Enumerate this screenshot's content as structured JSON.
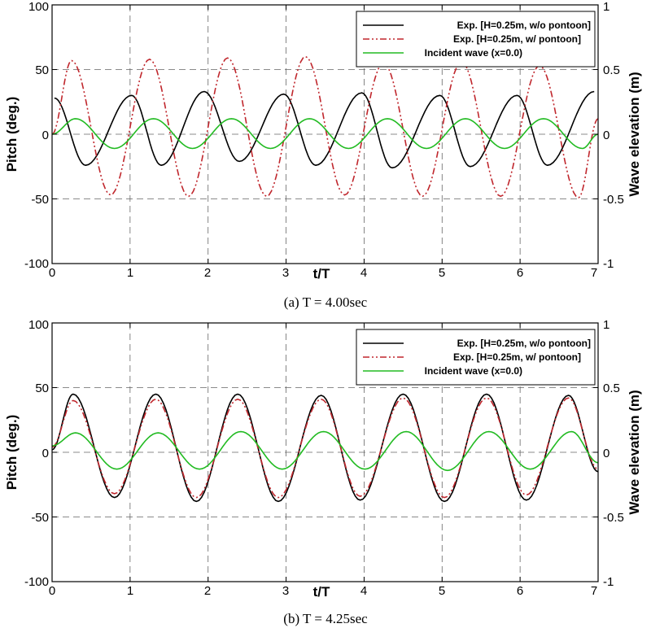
{
  "chart_data": [
    {
      "type": "line",
      "caption": "(a)  T  =  4.00sec",
      "xlabel": "t/T",
      "ylabel": "Pitch (deg.)",
      "y2label": "Wave elevation (m)",
      "xlim": [
        0,
        7
      ],
      "ylim": [
        -100,
        100
      ],
      "y2lim": [
        -1,
        1
      ],
      "xticks": [
        "0",
        "1",
        "2",
        "3",
        "4",
        "5",
        "6",
        "7"
      ],
      "yticks": [
        "-100",
        "-50",
        "0",
        "50",
        "100"
      ],
      "y2ticks": [
        "-1",
        "-0.5",
        "0",
        "0.5",
        "1"
      ],
      "grid": true,
      "legend_position": "top-right",
      "series": [
        {
          "name": "Exp. [H=0.25m, w/o pontoon]",
          "color": "#000000",
          "dash": "solid",
          "axis": "left",
          "peaks": [
            [
              0.03,
              28
            ],
            [
              1.02,
              30
            ],
            [
              1.95,
              33
            ],
            [
              2.97,
              31
            ],
            [
              3.97,
              32
            ],
            [
              4.97,
              30
            ],
            [
              5.96,
              30
            ],
            [
              6.95,
              33
            ]
          ],
          "troughs": [
            [
              0.43,
              -24
            ],
            [
              1.4,
              -24
            ],
            [
              2.4,
              -21
            ],
            [
              3.38,
              -24
            ],
            [
              4.36,
              -26
            ],
            [
              5.36,
              -25
            ],
            [
              6.35,
              -24
            ]
          ]
        },
        {
          "name": "Exp. [H=0.25m, w/ pontoon]",
          "color": "#c0272d",
          "dash": "dashdot",
          "axis": "left",
          "start": [
            0,
            0
          ],
          "peaks": [
            [
              0.25,
              57
            ],
            [
              1.25,
              58
            ],
            [
              2.25,
              59
            ],
            [
              3.25,
              60
            ],
            [
              4.25,
              55
            ],
            [
              5.25,
              56
            ],
            [
              6.25,
              53
            ]
          ],
          "troughs": [
            [
              0.75,
              -47
            ],
            [
              1.75,
              -48
            ],
            [
              2.75,
              -48
            ],
            [
              3.75,
              -47
            ],
            [
              4.75,
              -48
            ],
            [
              5.75,
              -48
            ],
            [
              6.75,
              -49
            ]
          ],
          "end": [
            7,
            12
          ]
        },
        {
          "name": "Incident wave (x=0.0)",
          "color": "#22bb22",
          "dash": "solid",
          "axis": "right",
          "start": [
            0,
            0.0
          ],
          "peaks": [
            [
              0.3,
              0.12
            ],
            [
              1.3,
              0.12
            ],
            [
              2.3,
              0.12
            ],
            [
              3.3,
              0.12
            ],
            [
              4.3,
              0.12
            ],
            [
              5.3,
              0.12
            ],
            [
              6.3,
              0.12
            ]
          ],
          "troughs": [
            [
              0.8,
              -0.11
            ],
            [
              1.8,
              -0.11
            ],
            [
              2.8,
              -0.11
            ],
            [
              3.8,
              -0.11
            ],
            [
              4.8,
              -0.11
            ],
            [
              5.8,
              -0.11
            ],
            [
              6.8,
              -0.11
            ]
          ],
          "end": [
            7,
            0.0
          ]
        }
      ]
    },
    {
      "type": "line",
      "caption": "(b)  T  =  4.25sec",
      "xlabel": "t/T",
      "ylabel": "Pitch (deg.)",
      "y2label": "Wave elevation (m)",
      "xlim": [
        0,
        7
      ],
      "ylim": [
        -100,
        100
      ],
      "y2lim": [
        -1,
        1
      ],
      "xticks": [
        "0",
        "1",
        "2",
        "3",
        "4",
        "5",
        "6",
        "7"
      ],
      "yticks": [
        "-100",
        "-50",
        "0",
        "50",
        "100"
      ],
      "y2ticks": [
        "-1",
        "-0.5",
        "0",
        "0.5",
        "1"
      ],
      "grid": true,
      "legend_position": "top-right",
      "series": [
        {
          "name": "Exp. [H=0.25m, w/o pontoon]",
          "color": "#000000",
          "dash": "solid",
          "axis": "left",
          "start": [
            0,
            2
          ],
          "peaks": [
            [
              0.27,
              45
            ],
            [
              1.33,
              45
            ],
            [
              2.38,
              45
            ],
            [
              3.45,
              44
            ],
            [
              4.5,
              45
            ],
            [
              5.57,
              45
            ],
            [
              6.62,
              44
            ]
          ],
          "troughs": [
            [
              0.8,
              -35
            ],
            [
              1.85,
              -38
            ],
            [
              2.9,
              -38
            ],
            [
              3.95,
              -37
            ],
            [
              5.03,
              -38
            ],
            [
              6.08,
              -37
            ]
          ],
          "end": [
            7,
            -15
          ]
        },
        {
          "name": "Exp. [H=0.25m, w/ pontoon]",
          "color": "#c0272d",
          "dash": "dashdot",
          "axis": "left",
          "start": [
            0,
            4
          ],
          "peaks": [
            [
              0.27,
              40
            ],
            [
              1.33,
              41
            ],
            [
              2.38,
              41
            ],
            [
              3.45,
              41
            ],
            [
              4.5,
              42
            ],
            [
              5.57,
              42
            ],
            [
              6.62,
              42
            ]
          ],
          "troughs": [
            [
              0.8,
              -32
            ],
            [
              1.85,
              -35
            ],
            [
              2.9,
              -35
            ],
            [
              3.95,
              -34
            ],
            [
              5.03,
              -35
            ],
            [
              6.08,
              -33
            ]
          ],
          "end": [
            7,
            -13
          ]
        },
        {
          "name": "Incident wave (x=0.0)",
          "color": "#22bb22",
          "dash": "solid",
          "axis": "right",
          "start": [
            0,
            0.05
          ],
          "peaks": [
            [
              0.3,
              0.15
            ],
            [
              1.36,
              0.15
            ],
            [
              2.42,
              0.16
            ],
            [
              3.48,
              0.16
            ],
            [
              4.54,
              0.16
            ],
            [
              5.6,
              0.16
            ],
            [
              6.66,
              0.16
            ]
          ],
          "troughs": [
            [
              0.83,
              -0.13
            ],
            [
              1.89,
              -0.13
            ],
            [
              2.95,
              -0.13
            ],
            [
              4.01,
              -0.13
            ],
            [
              5.07,
              -0.14
            ],
            [
              6.13,
              -0.13
            ]
          ],
          "end": [
            7,
            -0.08
          ]
        }
      ]
    }
  ]
}
